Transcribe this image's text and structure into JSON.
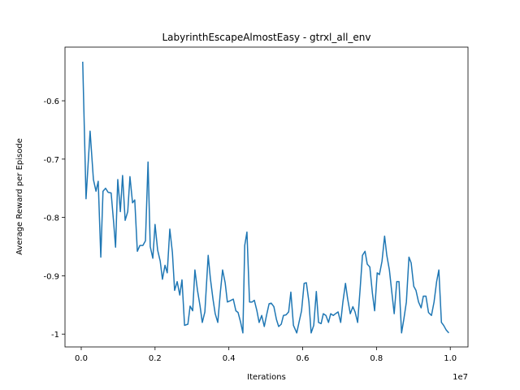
{
  "chart_data": {
    "type": "line",
    "title": "LabyrinthEscapeAlmostEasy - gtrxl_all_env",
    "x_label": "Iterations",
    "y_label": "Average Reward per Episode",
    "x_offset_label": "1e7",
    "xlim": [
      -0.044,
      1.048
    ],
    "ylim": [
      -1.022,
      -0.508
    ],
    "xticks": [
      {
        "value": 0,
        "label": "0.0"
      },
      0.2,
      0.4,
      0.6,
      0.8,
      {
        "value": 1,
        "label": "1.0"
      }
    ],
    "yticks": [
      -1.0,
      -0.9,
      -0.8,
      -0.7,
      -0.6
    ],
    "x": [
      0.004,
      0.013,
      0.024,
      0.033,
      0.04,
      0.046,
      0.053,
      0.059,
      0.066,
      0.073,
      0.081,
      0.088,
      0.093,
      0.099,
      0.106,
      0.112,
      0.119,
      0.126,
      0.132,
      0.139,
      0.145,
      0.152,
      0.159,
      0.167,
      0.174,
      0.181,
      0.187,
      0.194,
      0.2,
      0.207,
      0.214,
      0.22,
      0.227,
      0.233,
      0.24,
      0.247,
      0.253,
      0.26,
      0.267,
      0.273,
      0.28,
      0.289,
      0.295,
      0.302,
      0.308,
      0.315,
      0.322,
      0.328,
      0.335,
      0.344,
      0.35,
      0.357,
      0.363,
      0.37,
      0.377,
      0.383,
      0.39,
      0.396,
      0.403,
      0.412,
      0.419,
      0.425,
      0.432,
      0.438,
      0.443,
      0.449,
      0.456,
      0.463,
      0.469,
      0.476,
      0.482,
      0.489,
      0.496,
      0.502,
      0.509,
      0.515,
      0.522,
      0.529,
      0.535,
      0.542,
      0.548,
      0.555,
      0.562,
      0.568,
      0.575,
      0.584,
      0.59,
      0.597,
      0.604,
      0.61,
      0.617,
      0.623,
      0.63,
      0.637,
      0.643,
      0.65,
      0.656,
      0.663,
      0.67,
      0.676,
      0.683,
      0.689,
      0.696,
      0.703,
      0.709,
      0.716,
      0.722,
      0.729,
      0.736,
      0.742,
      0.749,
      0.756,
      0.762,
      0.769,
      0.775,
      0.782,
      0.789,
      0.795,
      0.802,
      0.808,
      0.815,
      0.822,
      0.828,
      0.835,
      0.841,
      0.848,
      0.855,
      0.861,
      0.868,
      0.874,
      0.881,
      0.888,
      0.894,
      0.901,
      0.907,
      0.914,
      0.921,
      0.927,
      0.934,
      0.941,
      0.949,
      0.956,
      0.963,
      0.969,
      0.976,
      0.982,
      0.989,
      0.996
    ],
    "series": [
      {
        "name": "reward",
        "color": "#1f77b4",
        "values": [
          -0.533,
          -0.768,
          -0.652,
          -0.735,
          -0.755,
          -0.738,
          -0.868,
          -0.755,
          -0.75,
          -0.757,
          -0.758,
          -0.81,
          -0.851,
          -0.735,
          -0.79,
          -0.728,
          -0.805,
          -0.79,
          -0.73,
          -0.775,
          -0.77,
          -0.858,
          -0.848,
          -0.848,
          -0.84,
          -0.705,
          -0.85,
          -0.87,
          -0.812,
          -0.856,
          -0.875,
          -0.906,
          -0.882,
          -0.895,
          -0.82,
          -0.86,
          -0.925,
          -0.91,
          -0.933,
          -0.907,
          -0.985,
          -0.983,
          -0.952,
          -0.96,
          -0.89,
          -0.925,
          -0.952,
          -0.98,
          -0.962,
          -0.865,
          -0.905,
          -0.94,
          -0.965,
          -0.98,
          -0.928,
          -0.89,
          -0.912,
          -0.945,
          -0.943,
          -0.94,
          -0.96,
          -0.963,
          -0.98,
          -0.998,
          -0.848,
          -0.825,
          -0.945,
          -0.945,
          -0.942,
          -0.96,
          -0.98,
          -0.968,
          -0.987,
          -0.968,
          -0.948,
          -0.947,
          -0.953,
          -0.975,
          -0.987,
          -0.983,
          -0.968,
          -0.967,
          -0.962,
          -0.928,
          -0.985,
          -0.998,
          -0.98,
          -0.96,
          -0.913,
          -0.912,
          -0.945,
          -0.998,
          -0.985,
          -0.927,
          -0.98,
          -0.982,
          -0.965,
          -0.968,
          -0.98,
          -0.965,
          -0.968,
          -0.965,
          -0.962,
          -0.98,
          -0.945,
          -0.913,
          -0.94,
          -0.965,
          -0.953,
          -0.962,
          -0.98,
          -0.92,
          -0.865,
          -0.858,
          -0.88,
          -0.885,
          -0.93,
          -0.96,
          -0.895,
          -0.898,
          -0.875,
          -0.832,
          -0.865,
          -0.89,
          -0.925,
          -0.965,
          -0.91,
          -0.91,
          -0.998,
          -0.975,
          -0.945,
          -0.868,
          -0.878,
          -0.918,
          -0.925,
          -0.945,
          -0.955,
          -0.935,
          -0.935,
          -0.963,
          -0.968,
          -0.945,
          -0.91,
          -0.89,
          -0.98,
          -0.985,
          -0.993,
          -0.998
        ]
      }
    ]
  }
}
